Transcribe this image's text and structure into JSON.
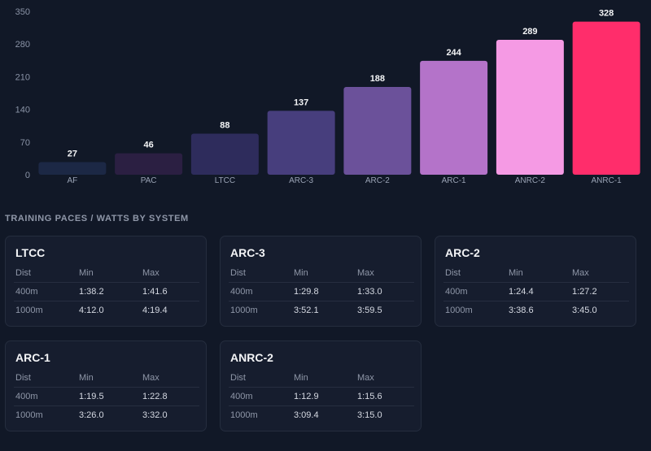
{
  "chart_data": {
    "type": "bar",
    "categories": [
      "AF",
      "PAC",
      "LTCC",
      "ARC-3",
      "ARC-2",
      "ARC-1",
      "ANRC-2",
      "ANRC-1"
    ],
    "values": [
      27,
      46,
      88,
      137,
      188,
      244,
      289,
      328
    ],
    "colors": [
      "#1c2845",
      "#2b1f42",
      "#2e2c5c",
      "#473e7d",
      "#6b519a",
      "#b473c9",
      "#f59ae4",
      "#ff2d6b"
    ],
    "yticks": [
      0,
      70,
      140,
      210,
      280,
      350
    ],
    "ylim": [
      0,
      350
    ],
    "grid": false,
    "legend": "none"
  },
  "section": {
    "title": "TRAINING PACES / WATTS BY SYSTEM"
  },
  "cards": [
    {
      "title": "LTCC",
      "headers": [
        "Dist",
        "Min",
        "Max"
      ],
      "rows": [
        [
          "400m",
          "1:38.2",
          "1:41.6"
        ],
        [
          "1000m",
          "4:12.0",
          "4:19.4"
        ]
      ]
    },
    {
      "title": "ARC-3",
      "headers": [
        "Dist",
        "Min",
        "Max"
      ],
      "rows": [
        [
          "400m",
          "1:29.8",
          "1:33.0"
        ],
        [
          "1000m",
          "3:52.1",
          "3:59.5"
        ]
      ]
    },
    {
      "title": "ARC-2",
      "headers": [
        "Dist",
        "Min",
        "Max"
      ],
      "rows": [
        [
          "400m",
          "1:24.4",
          "1:27.2"
        ],
        [
          "1000m",
          "3:38.6",
          "3:45.0"
        ]
      ]
    },
    {
      "title": "ARC-1",
      "headers": [
        "Dist",
        "Min",
        "Max"
      ],
      "rows": [
        [
          "400m",
          "1:19.5",
          "1:22.8"
        ],
        [
          "1000m",
          "3:26.0",
          "3:32.0"
        ]
      ]
    },
    {
      "title": "ANRC-2",
      "headers": [
        "Dist",
        "Min",
        "Max"
      ],
      "rows": [
        [
          "400m",
          "1:12.9",
          "1:15.6"
        ],
        [
          "1000m",
          "3:09.4",
          "3:15.0"
        ]
      ]
    }
  ]
}
